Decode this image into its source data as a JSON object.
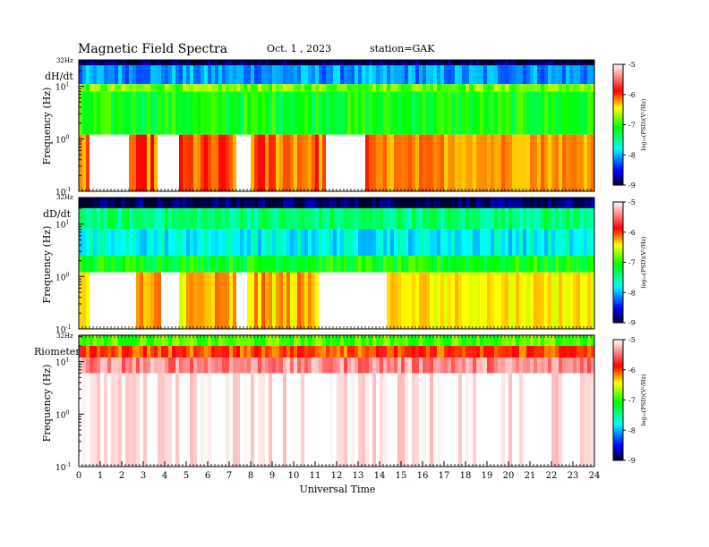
{
  "header": {
    "title": "Magnetic  Field  Spectra",
    "date": "Oct. 1  , 2023",
    "station": "station=GAK"
  },
  "panels": [
    {
      "label": "dH/dt",
      "top_label": "32Hz"
    },
    {
      "label": "dD/dt",
      "top_label": "32Hz"
    },
    {
      "label": "Riometer",
      "top_label": "32Hz"
    }
  ],
  "axes": {
    "ylabel": "Frequency  (Hz)",
    "xlabel": "Universal  Time",
    "y_ticks": [
      {
        "base": "10",
        "exp": "1"
      },
      {
        "base": "10",
        "exp": "0"
      },
      {
        "base": "10",
        "exp": "-1"
      }
    ],
    "x_ticks": [
      "0",
      "1",
      "2",
      "3",
      "4",
      "5",
      "6",
      "7",
      "8",
      "9",
      "10",
      "11",
      "12",
      "13",
      "14",
      "15",
      "16",
      "17",
      "18",
      "19",
      "20",
      "21",
      "22",
      "23",
      "24"
    ]
  },
  "colorbar": {
    "label": "log₁₀(PSD)(V²/Hz)",
    "ticks": [
      "-5",
      "-6",
      "-7",
      "-8",
      "-9"
    ],
    "colors": [
      "#ffffff",
      "#ff0000",
      "#ffff00",
      "#00ff00",
      "#00ffff",
      "#0000ff",
      "#000033"
    ]
  },
  "chart_data": {
    "type": "heatmap",
    "x_range_hours": [
      0,
      24
    ],
    "y_range_hz": [
      0.1,
      32
    ],
    "y_scale": "log",
    "color_range_log_psd": [
      -9,
      -5
    ],
    "series": [
      {
        "name": "dH/dt",
        "bands": [
          {
            "f_low": 25,
            "f_high": 32,
            "level": -8.9
          },
          {
            "f_low": 11,
            "f_high": 25,
            "level": -8.1
          },
          {
            "f_low": 8,
            "f_high": 11,
            "level": -6.8
          },
          {
            "f_low": 1.2,
            "f_high": 8,
            "level": -7.1
          },
          {
            "f_low": 0.1,
            "f_high": 1.2,
            "level": -6.1
          }
        ],
        "quiet_intervals_hours": [
          [
            0.5,
            2.2
          ],
          [
            3.6,
            4.5
          ],
          [
            7.3,
            7.9
          ],
          [
            11.4,
            13.3
          ]
        ],
        "active_hours": [
          [
            13.5,
            24
          ]
        ]
      },
      {
        "name": "dD/dt",
        "bands": [
          {
            "f_low": 20,
            "f_high": 32,
            "level": -8.9
          },
          {
            "f_low": 8,
            "f_high": 20,
            "level": -7.4
          },
          {
            "f_low": 2.5,
            "f_high": 8,
            "level": -7.8
          },
          {
            "f_low": 1.2,
            "f_high": 2.5,
            "level": -7.1
          },
          {
            "f_low": 0.1,
            "f_high": 1.2,
            "level": -6.3
          }
        ],
        "quiet_intervals_hours": [
          [
            0.4,
            2.5
          ],
          [
            3.7,
            4.6
          ],
          [
            7.2,
            7.8
          ],
          [
            11.1,
            14.3
          ]
        ],
        "active_hours": [
          [
            14.5,
            24
          ]
        ]
      },
      {
        "name": "Riometer",
        "bands": [
          {
            "f_low": 20,
            "f_high": 32,
            "level": -6.9
          },
          {
            "f_low": 12,
            "f_high": 20,
            "level": -6.0
          },
          {
            "f_low": 6,
            "f_high": 12,
            "level": -5.4
          },
          {
            "f_low": 0.1,
            "f_high": 6,
            "level": -5.0
          }
        ]
      }
    ]
  }
}
